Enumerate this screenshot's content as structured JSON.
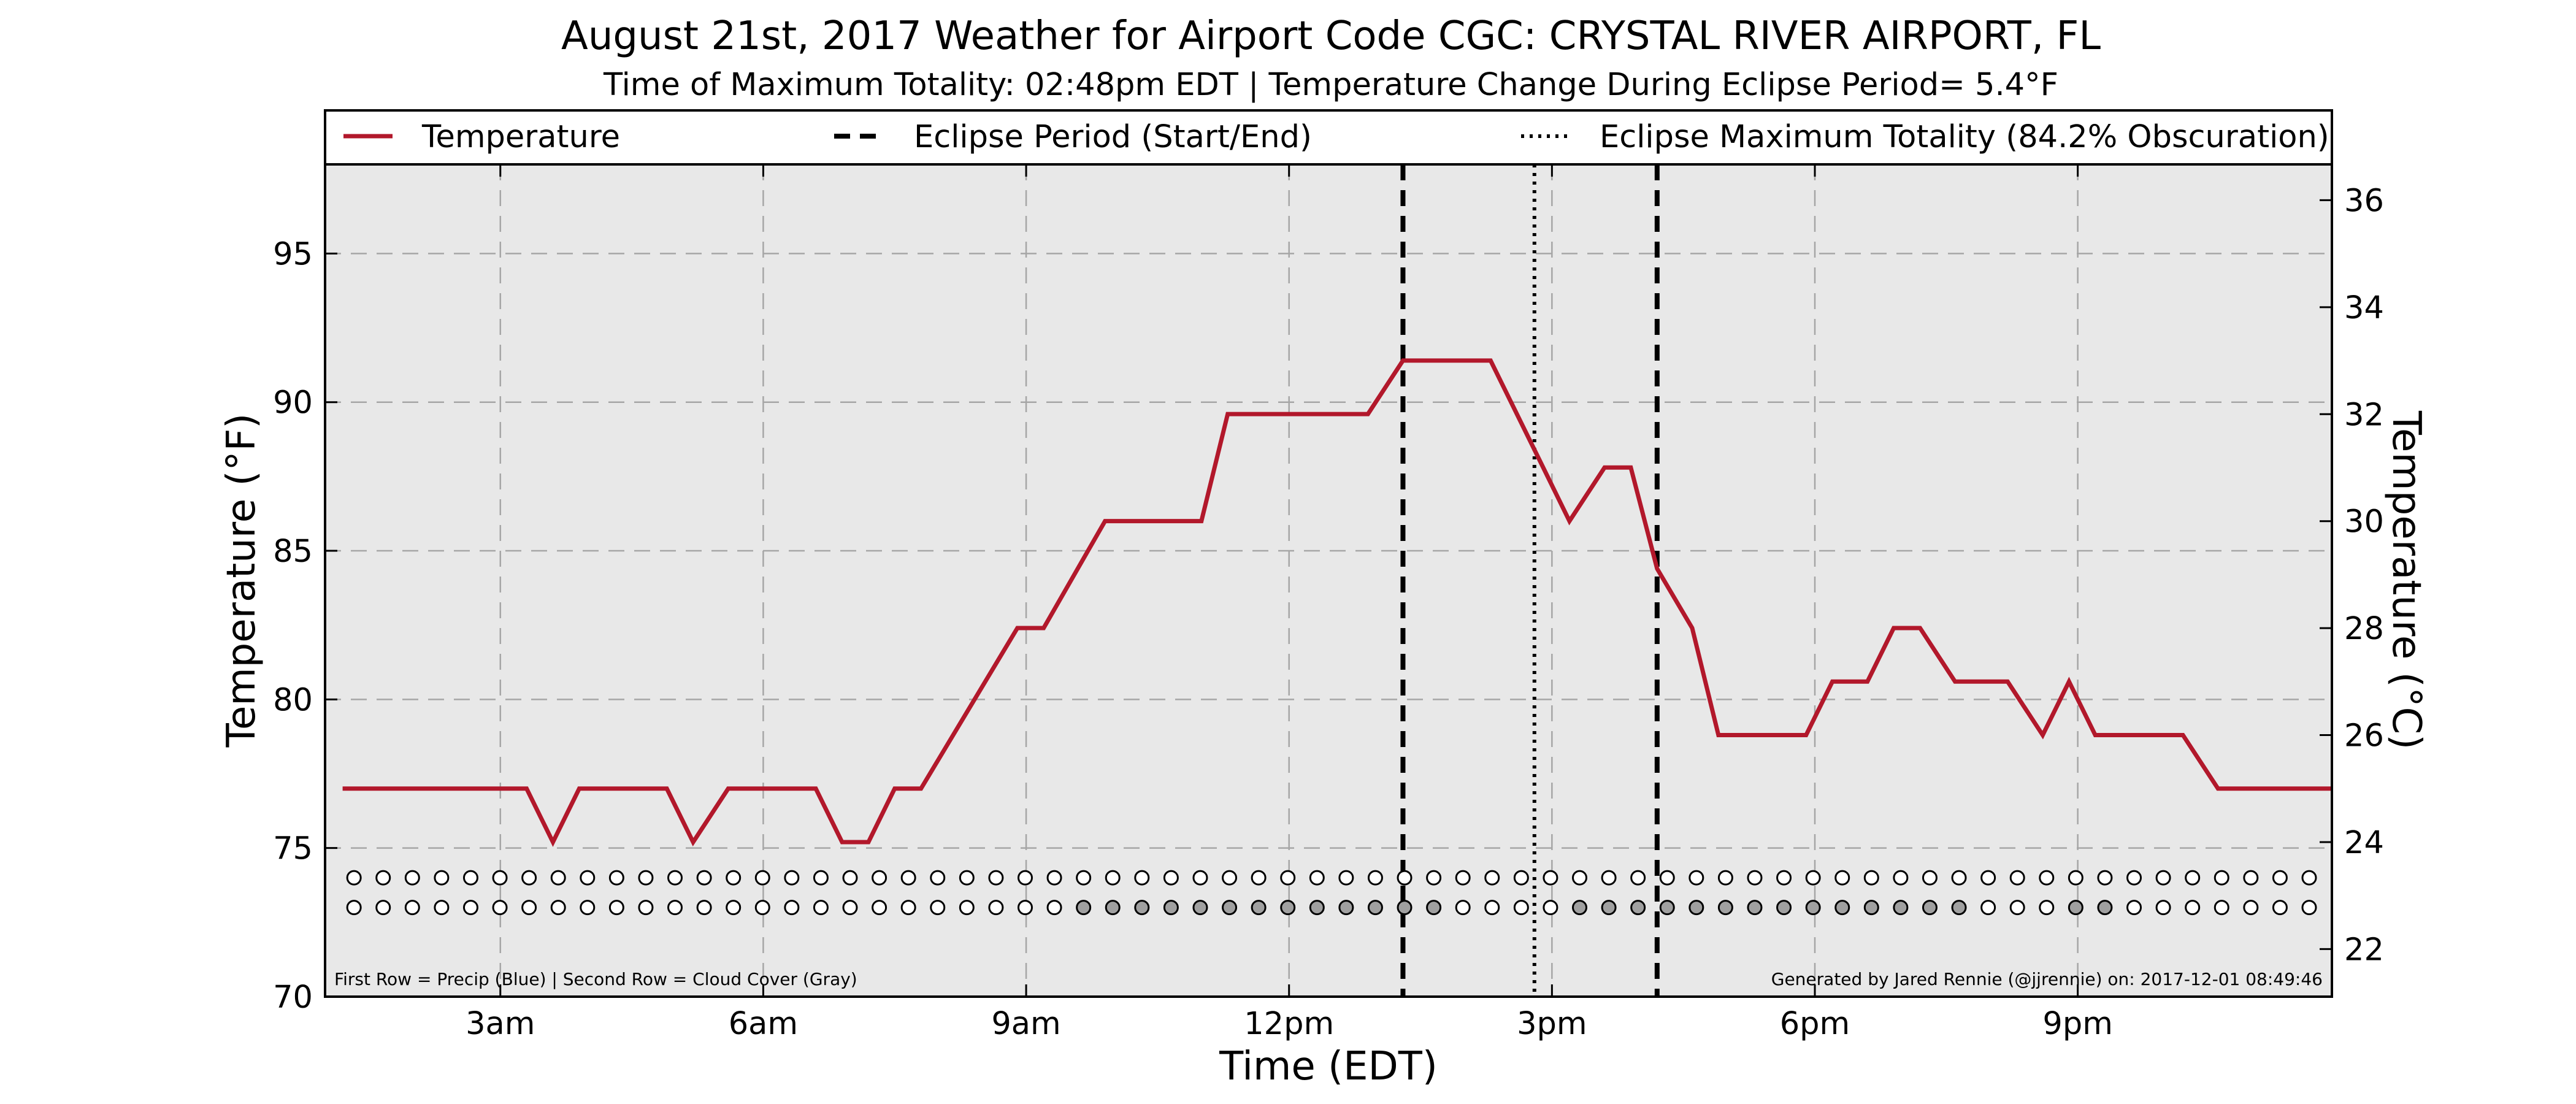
{
  "chart_data": {
    "type": "line",
    "title": "August 21st, 2017 Weather for Airport Code CGC: CRYSTAL RIVER AIRPORT, FL",
    "subtitle": "Time of Maximum Totality: 02:48pm EDT | Temperature Change During Eclipse Period= 5.4°F",
    "xlabel": "Time (EDT)",
    "ylabel": "Temperature (°F)",
    "ylabel_right": "Temperature (°C)",
    "xlim": [
      1.0,
      23.9
    ],
    "ylim": [
      70,
      98
    ],
    "ylim_right": [
      21.11,
      36.67
    ],
    "x_ticks": [
      {
        "hour": 3,
        "label": "3am"
      },
      {
        "hour": 6,
        "label": "6am"
      },
      {
        "hour": 9,
        "label": "9am"
      },
      {
        "hour": 12,
        "label": "12pm"
      },
      {
        "hour": 15,
        "label": "3pm"
      },
      {
        "hour": 18,
        "label": "6pm"
      },
      {
        "hour": 21,
        "label": "9pm"
      }
    ],
    "y_ticks": [
      70,
      75,
      80,
      85,
      90,
      95
    ],
    "y_ticks_right": [
      22,
      24,
      26,
      28,
      30,
      32,
      34,
      36
    ],
    "grid": true,
    "legend": {
      "position": "top",
      "entries": [
        {
          "label": "Temperature",
          "style": "solid"
        },
        {
          "label": "Eclipse Period (Start/End)",
          "style": "dashed"
        },
        {
          "label": "Eclipse Maximum Totality (84.2% Obscuration)",
          "style": "dotted"
        }
      ]
    },
    "series": [
      {
        "name": "Temperature",
        "color": "#b2182b",
        "points": [
          [
            1.2,
            77.0
          ],
          [
            3.3,
            77.0
          ],
          [
            3.6,
            75.2
          ],
          [
            3.9,
            77.0
          ],
          [
            4.9,
            77.0
          ],
          [
            5.2,
            75.2
          ],
          [
            5.6,
            77.0
          ],
          [
            6.6,
            77.0
          ],
          [
            6.9,
            75.2
          ],
          [
            7.2,
            75.2
          ],
          [
            7.5,
            77.0
          ],
          [
            7.8,
            77.0
          ],
          [
            8.9,
            82.4
          ],
          [
            9.2,
            82.4
          ],
          [
            9.9,
            86.0
          ],
          [
            11.0,
            86.0
          ],
          [
            11.3,
            89.6
          ],
          [
            12.9,
            89.6
          ],
          [
            13.3,
            91.4
          ],
          [
            14.3,
            91.4
          ],
          [
            14.9,
            87.8
          ],
          [
            15.2,
            86.0
          ],
          [
            15.6,
            87.8
          ],
          [
            15.9,
            87.8
          ],
          [
            16.2,
            84.4
          ],
          [
            16.6,
            82.4
          ],
          [
            16.9,
            78.8
          ],
          [
            17.9,
            78.8
          ],
          [
            18.2,
            80.6
          ],
          [
            18.6,
            80.6
          ],
          [
            18.9,
            82.4
          ],
          [
            19.2,
            82.4
          ],
          [
            19.6,
            80.6
          ],
          [
            20.2,
            80.6
          ],
          [
            20.6,
            78.8
          ],
          [
            20.9,
            80.6
          ],
          [
            21.2,
            78.8
          ],
          [
            22.2,
            78.8
          ],
          [
            22.6,
            77.0
          ],
          [
            23.9,
            77.0
          ]
        ]
      }
    ],
    "eclipse_start": 13.3,
    "eclipse_max": 14.8,
    "eclipse_end": 16.2,
    "indicator_rows": {
      "start_hour": 1.33,
      "step_hours": 0.333,
      "count": 68,
      "precip_row_y": 74.0,
      "cloud_row_y": 73.0,
      "clear_color": "#ffffff",
      "cloud_color": "#a0a0a0",
      "cloud_ranges": [
        [
          9.5,
          13.7
        ],
        [
          15.0,
          19.8
        ],
        [
          20.7,
          21.4
        ]
      ]
    },
    "footnote_left": "First Row = Precip (Blue) | Second Row = Cloud Cover (Gray)",
    "footnote_right": "Generated by Jared Rennie (@jjrennie) on: 2017-12-01 08:49:46"
  }
}
